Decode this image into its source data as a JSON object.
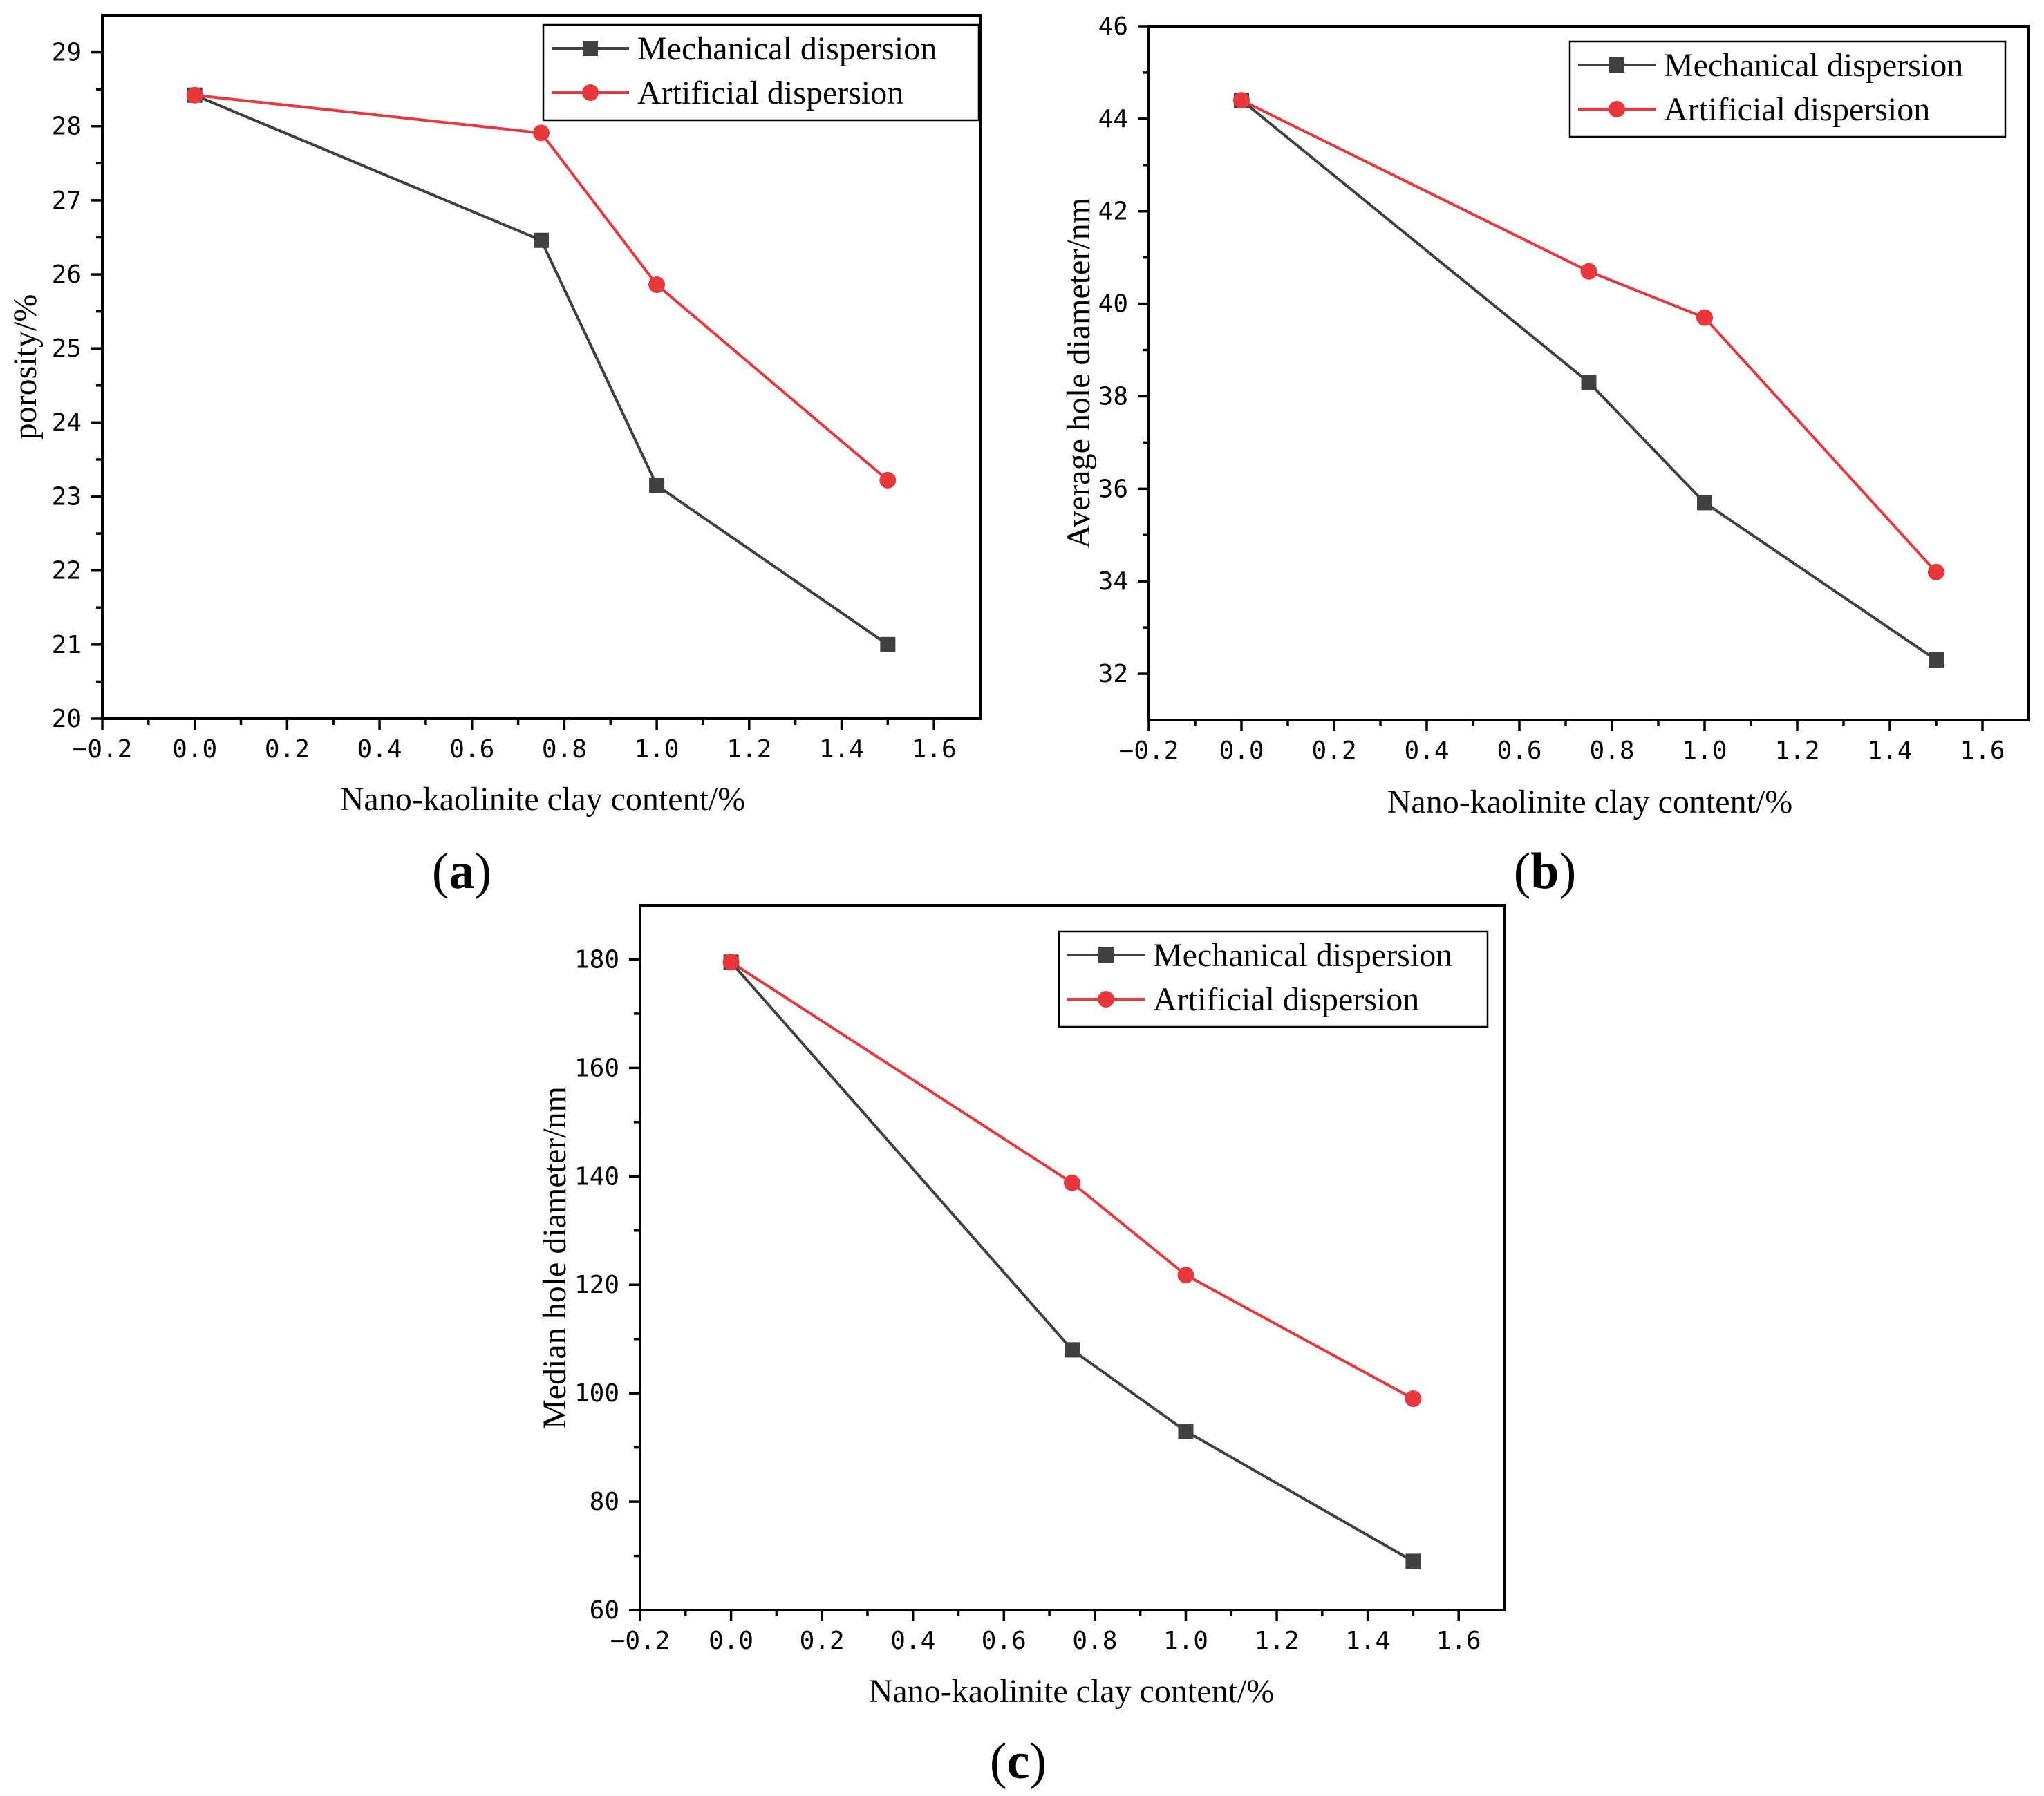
{
  "chart_data": [
    {
      "type": "line",
      "panel_label": "a",
      "xlabel": "Nano-kaolinite clay content/%",
      "ylabel": "porosity/%",
      "xlim": [
        -0.2,
        1.7
      ],
      "ylim": [
        20,
        29.5
      ],
      "xticks": [
        -0.2,
        0.0,
        0.2,
        0.4,
        0.6,
        0.8,
        1.0,
        1.2,
        1.4,
        1.6
      ],
      "xtick_labels": [
        "−0.2",
        "0.0",
        "0.2",
        "0.4",
        "0.6",
        "0.8",
        "1.0",
        "1.2",
        "1.4",
        "1.6"
      ],
      "yticks": [
        20,
        21,
        22,
        23,
        24,
        25,
        26,
        27,
        28,
        29
      ],
      "ytick_labels": [
        "20",
        "21",
        "22",
        "23",
        "24",
        "25",
        "26",
        "27",
        "28",
        "29"
      ],
      "legend_position": "top-right",
      "series": [
        {
          "name": "Mechanical dispersion",
          "marker": "square",
          "color": "#404040",
          "x": [
            0,
            0.75,
            1.0,
            1.5
          ],
          "values": [
            28.42,
            26.46,
            23.15,
            21.0
          ]
        },
        {
          "name": "Artificial dispersion",
          "marker": "circle",
          "color": "#e8383d",
          "x": [
            0,
            0.75,
            1.0,
            1.5
          ],
          "values": [
            28.42,
            27.91,
            25.86,
            23.22
          ]
        }
      ]
    },
    {
      "type": "line",
      "panel_label": "b",
      "xlabel": "Nano-kaolinite clay content/%",
      "ylabel": "Average hole diameter/nm",
      "xlim": [
        -0.2,
        1.7
      ],
      "ylim": [
        31,
        46
      ],
      "xticks": [
        -0.2,
        0.0,
        0.2,
        0.4,
        0.6,
        0.8,
        1.0,
        1.2,
        1.4,
        1.6
      ],
      "xtick_labels": [
        "−0.2",
        "0.0",
        "0.2",
        "0.4",
        "0.6",
        "0.8",
        "1.0",
        "1.2",
        "1.4",
        "1.6"
      ],
      "yticks": [
        32,
        34,
        36,
        38,
        40,
        42,
        44,
        46
      ],
      "ytick_labels": [
        "32",
        "34",
        "36",
        "38",
        "40",
        "42",
        "44",
        "46"
      ],
      "legend_position": "top-right",
      "series": [
        {
          "name": "Mechanical dispersion",
          "marker": "square",
          "color": "#404040",
          "x": [
            0,
            0.75,
            1.0,
            1.5
          ],
          "values": [
            44.4,
            38.3,
            35.7,
            32.3
          ]
        },
        {
          "name": "Artificial dispersion",
          "marker": "circle",
          "color": "#e8383d",
          "x": [
            0,
            0.75,
            1.0,
            1.5
          ],
          "values": [
            44.4,
            40.7,
            39.7,
            34.2
          ]
        }
      ]
    },
    {
      "type": "line",
      "panel_label": "c",
      "xlabel": "Nano-kaolinite clay content/%",
      "ylabel": "Median hole diameter/nm",
      "xlim": [
        -0.2,
        1.7
      ],
      "ylim": [
        60,
        190
      ],
      "xticks": [
        -0.2,
        0.0,
        0.2,
        0.4,
        0.6,
        0.8,
        1.0,
        1.2,
        1.4,
        1.6
      ],
      "xtick_labels": [
        "−0.2",
        "0.0",
        "0.2",
        "0.4",
        "0.6",
        "0.8",
        "1.0",
        "1.2",
        "1.4",
        "1.6"
      ],
      "yticks": [
        60,
        80,
        100,
        120,
        140,
        160,
        180
      ],
      "ytick_labels": [
        "60",
        "80",
        "100",
        "120",
        "140",
        "160",
        "180"
      ],
      "legend_position": "top-right",
      "series": [
        {
          "name": "Mechanical dispersion",
          "marker": "square",
          "color": "#404040",
          "x": [
            0,
            0.75,
            1.0,
            1.5
          ],
          "values": [
            179.5,
            108.0,
            93.0,
            69.0
          ]
        },
        {
          "name": "Artificial dispersion",
          "marker": "circle",
          "color": "#e8383d",
          "x": [
            0,
            0.75,
            1.0,
            1.5
          ],
          "values": [
            179.5,
            138.8,
            121.8,
            99.0
          ]
        }
      ]
    }
  ]
}
